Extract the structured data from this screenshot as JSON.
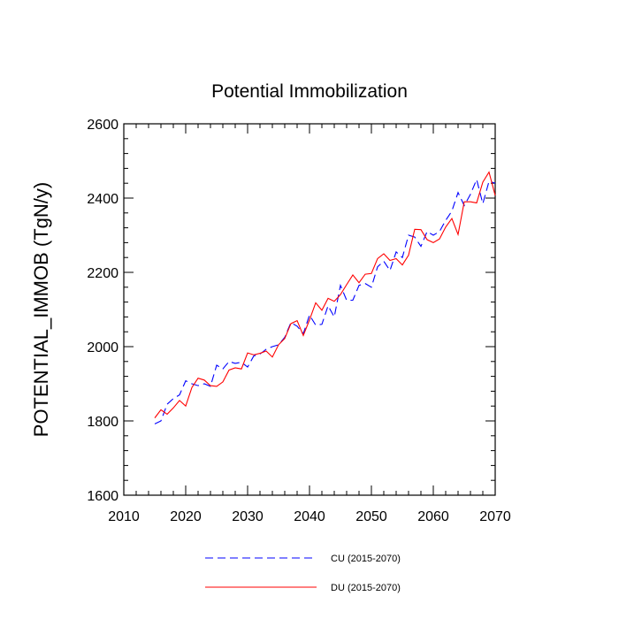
{
  "chart_data": {
    "type": "line",
    "title": "Potential Immobilization",
    "xlabel": "",
    "ylabel": "POTENTIAL_IMMOB  (TgN/y)",
    "xlim": [
      2010,
      2070
    ],
    "ylim": [
      1600,
      2600
    ],
    "xticks": [
      2010,
      2020,
      2030,
      2040,
      2050,
      2060,
      2070
    ],
    "yticks": [
      1600,
      1800,
      2000,
      2200,
      2400,
      2600
    ],
    "x": [
      2015,
      2016,
      2017,
      2018,
      2019,
      2020,
      2021,
      2022,
      2023,
      2024,
      2025,
      2026,
      2027,
      2028,
      2029,
      2030,
      2031,
      2032,
      2033,
      2034,
      2035,
      2036,
      2037,
      2038,
      2039,
      2040,
      2041,
      2042,
      2043,
      2044,
      2045,
      2046,
      2047,
      2048,
      2049,
      2050,
      2051,
      2052,
      2053,
      2054,
      2055,
      2056,
      2057,
      2058,
      2059,
      2060,
      2061,
      2062,
      2063,
      2064,
      2065,
      2066,
      2067,
      2068,
      2069,
      2070
    ],
    "series": [
      {
        "name": "CU (2015-2070)",
        "color": "#0000ff",
        "style": "dashed",
        "values": [
          1792,
          1800,
          1845,
          1860,
          1870,
          1908,
          1900,
          1895,
          1900,
          1893,
          1950,
          1940,
          1960,
          1955,
          1958,
          1945,
          1975,
          1980,
          1993,
          2000,
          2005,
          2025,
          2065,
          2055,
          2035,
          2085,
          2058,
          2060,
          2110,
          2080,
          2165,
          2125,
          2125,
          2165,
          2170,
          2160,
          2215,
          2230,
          2205,
          2255,
          2240,
          2300,
          2295,
          2270,
          2310,
          2300,
          2310,
          2340,
          2365,
          2415,
          2380,
          2410,
          2450,
          2385,
          2445,
          2440
        ]
      },
      {
        "name": "DU (2015-2070)",
        "color": "#ff0000",
        "style": "solid",
        "values": [
          1808,
          1830,
          1818,
          1835,
          1855,
          1840,
          1890,
          1915,
          1910,
          1895,
          1893,
          1905,
          1937,
          1943,
          1940,
          1983,
          1978,
          1982,
          1988,
          1972,
          2005,
          2022,
          2062,
          2070,
          2030,
          2072,
          2118,
          2098,
          2130,
          2122,
          2140,
          2167,
          2193,
          2172,
          2195,
          2197,
          2237,
          2250,
          2232,
          2237,
          2220,
          2246,
          2316,
          2315,
          2288,
          2280,
          2290,
          2322,
          2345,
          2302,
          2390,
          2390,
          2387,
          2443,
          2470,
          2407
        ]
      }
    ],
    "legend": "bottom-center"
  }
}
